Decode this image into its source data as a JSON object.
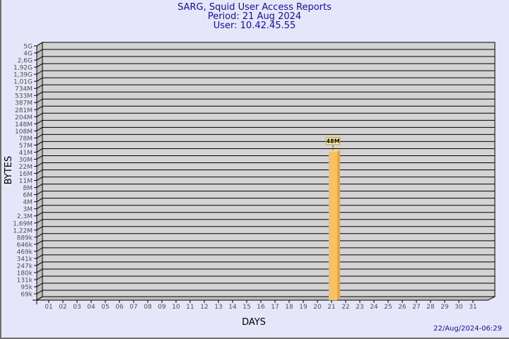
{
  "header": {
    "title": "SARG, Squid User Access Reports",
    "period": "Period: 21 Aug 2024",
    "user": "User: 10.42.45.55"
  },
  "footer": {
    "timestamp": "22/Aug/2024-06:29"
  },
  "colors": {
    "background": "#e6e6fa",
    "plot": "#d3d3d3",
    "bar": "#fcc15f",
    "title": "#1010a0"
  },
  "chart_data": {
    "type": "bar",
    "title": "SARG, Squid User Access Reports",
    "xlabel": "DAYS",
    "ylabel": "BYTES",
    "y_scale": "log",
    "y_ticks": [
      "5G",
      "4G",
      "2,6G",
      "1,92G",
      "1,39G",
      "1,01G",
      "734M",
      "533M",
      "387M",
      "281M",
      "204M",
      "148M",
      "108M",
      "78M",
      "57M",
      "41M",
      "30M",
      "22M",
      "16M",
      "11M",
      "8M",
      "6M",
      "4M",
      "3M",
      "2,3M",
      "1,69M",
      "1,22M",
      "889k",
      "646k",
      "469k",
      "341k",
      "247k",
      "180k",
      "131k",
      "95k",
      "69k"
    ],
    "categories": [
      "01",
      "02",
      "03",
      "04",
      "05",
      "06",
      "07",
      "08",
      "09",
      "10",
      "11",
      "12",
      "13",
      "14",
      "15",
      "16",
      "17",
      "18",
      "19",
      "20",
      "21",
      "22",
      "23",
      "24",
      "25",
      "26",
      "27",
      "28",
      "29",
      "30",
      "31"
    ],
    "bars": [
      {
        "day": "21",
        "value_bytes": 48000000,
        "label": "48M"
      }
    ],
    "grid": true,
    "style": "3d"
  }
}
